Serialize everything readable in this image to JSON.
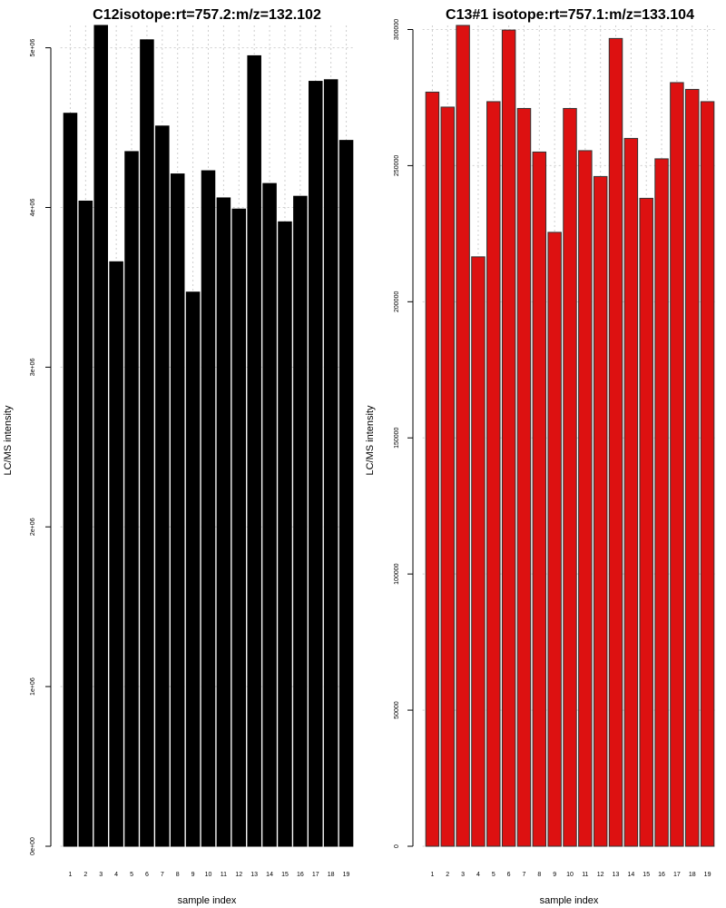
{
  "chart_data": [
    {
      "type": "bar",
      "title": "C12isotope:rt=757.2:m/z=132.102",
      "xlabel": "sample index",
      "ylabel": "LC/MS intensity",
      "categories": [
        "1",
        "2",
        "3",
        "4",
        "5",
        "6",
        "7",
        "8",
        "9",
        "10",
        "11",
        "12",
        "13",
        "14",
        "15",
        "16",
        "17",
        "18",
        "19"
      ],
      "values": [
        4590000,
        4040000,
        5140000,
        3660000,
        4350000,
        5050000,
        4510000,
        4210000,
        3470000,
        4230000,
        4060000,
        3990000,
        4950000,
        4150000,
        3910000,
        4070000,
        4790000,
        4800000,
        4420000
      ],
      "ylim": [
        0,
        5140000
      ],
      "yticks": [
        0,
        1000000,
        2000000,
        3000000,
        4000000,
        5000000
      ],
      "ytick_labels": [
        "0e+00",
        "1e+06",
        "2e+06",
        "3e+06",
        "4e+06",
        "5e+06"
      ],
      "bar_color": "#000000",
      "grid": true
    },
    {
      "type": "bar",
      "title": "C13#1 isotope:rt=757.1:m/z=133.104",
      "xlabel": "sample index",
      "ylabel": "LC/MS intensity",
      "categories": [
        "1",
        "2",
        "3",
        "4",
        "5",
        "6",
        "7",
        "8",
        "9",
        "10",
        "11",
        "12",
        "13",
        "14",
        "15",
        "16",
        "17",
        "18",
        "19"
      ],
      "values": [
        277000,
        271500,
        301500,
        216500,
        273500,
        299800,
        271000,
        255000,
        225500,
        271000,
        255500,
        246000,
        296700,
        260000,
        238000,
        252500,
        280500,
        278000,
        273500
      ],
      "ylim": [
        0,
        301500
      ],
      "yticks": [
        0,
        50000,
        100000,
        150000,
        200000,
        250000,
        300000
      ],
      "ytick_labels": [
        "0",
        "50000",
        "100000",
        "150000",
        "200000",
        "250000",
        "300000"
      ],
      "bar_color": "#dd1111",
      "grid": true
    }
  ]
}
